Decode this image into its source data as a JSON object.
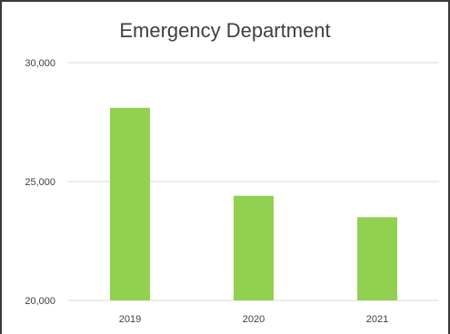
{
  "chart_data": {
    "type": "bar",
    "title": "Emergency Department",
    "categories": [
      "2019",
      "2020",
      "2021"
    ],
    "values": [
      28100,
      24400,
      23500
    ],
    "ylim": [
      20000,
      30000
    ],
    "yticks": [
      "20,000",
      "25,000",
      "30,000"
    ],
    "ytick_values": [
      20000,
      25000,
      30000
    ],
    "grid": true,
    "legend": "none",
    "colors": {
      "bar": "#92d050",
      "grid": "#d9d9d9",
      "text": "#404040",
      "frame": "#3a3a3a"
    }
  }
}
